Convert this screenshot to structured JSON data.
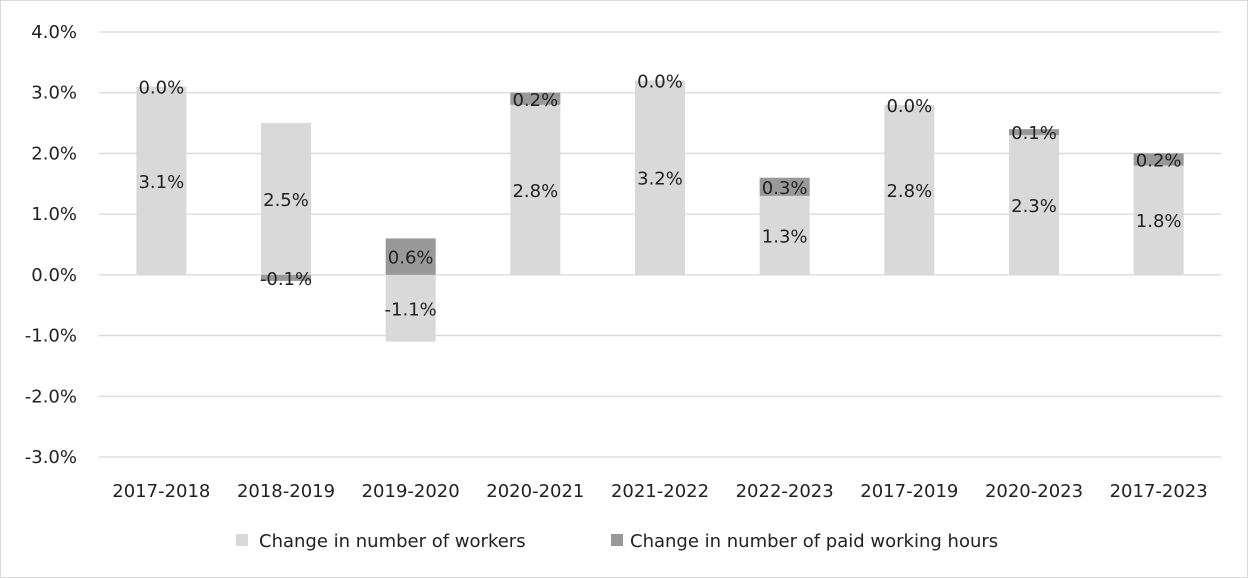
{
  "chart_data": {
    "type": "bar",
    "stacked": true,
    "title": "",
    "xlabel": "",
    "ylabel": "",
    "ylim": [
      -0.03,
      0.04
    ],
    "y_ticks": [
      0.04,
      0.03,
      0.02,
      0.01,
      0.0,
      -0.01,
      -0.02,
      -0.03
    ],
    "y_tick_labels": [
      "4.0%",
      "3.0%",
      "2.0%",
      "1.0%",
      "0.0%",
      "-1.0%",
      "-2.0%",
      "-3.0%"
    ],
    "grid": true,
    "legend_position": "bottom",
    "categories": [
      "2017-2018",
      "2018-2019",
      "2019-2020",
      "2020-2021",
      "2021-2022",
      "2022-2023",
      "2017-2019",
      "2020-2023",
      "2017-2023"
    ],
    "series": [
      {
        "name": "Change in number of workers",
        "color": "#d9d9d9",
        "values": [
          0.031,
          0.025,
          -0.011,
          0.028,
          0.032,
          0.013,
          0.028,
          0.023,
          0.018
        ],
        "labels": [
          "3.1%",
          "2.5%",
          "-1.1%",
          "2.8%",
          "3.2%",
          "1.3%",
          "2.8%",
          "2.3%",
          "1.8%"
        ]
      },
      {
        "name": "Change in number of paid working hours",
        "color": "#999999",
        "values": [
          0.0,
          -0.001,
          0.006,
          0.002,
          0.0,
          0.003,
          0.0,
          0.001,
          0.002
        ],
        "labels": [
          "0.0%",
          "-0.1%",
          "0.6%",
          "0.2%",
          "0.0%",
          "0.3%",
          "0.0%",
          "0.1%",
          "0.2%"
        ]
      }
    ]
  }
}
